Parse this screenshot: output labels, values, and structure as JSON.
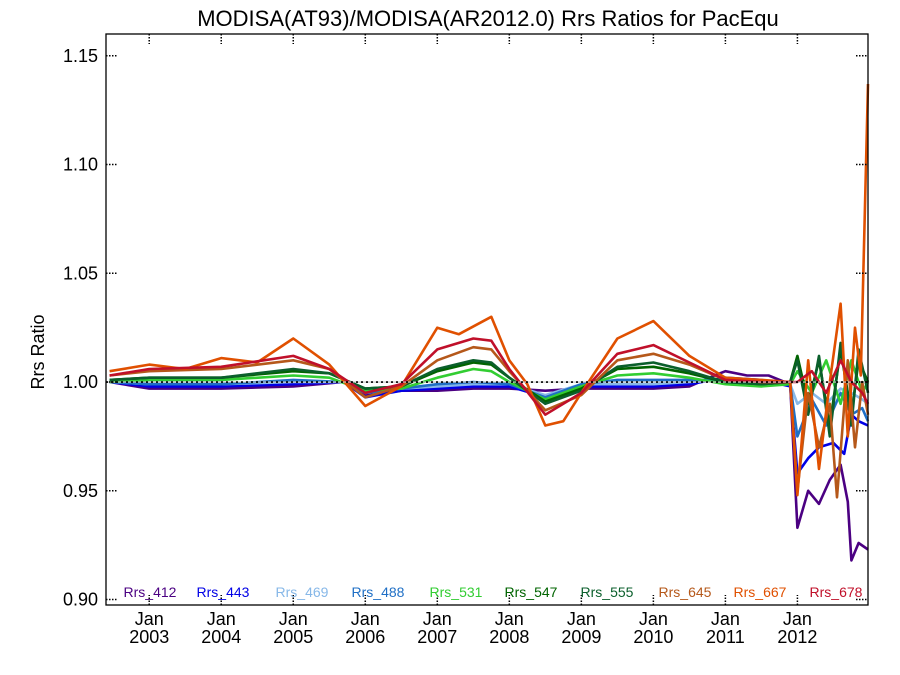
{
  "chart_data": {
    "type": "line",
    "title": "MODISA(AT93)/MODISA(AR2012.0)  Rrs Ratios for PacEqu",
    "xlabel": "",
    "ylabel": "Rrs Ratio",
    "ylim": [
      0.8975,
      1.16
    ],
    "xlim": [
      2002.4,
      2012.98
    ],
    "y_ticks": [
      "0.90",
      "0.95",
      "1.00",
      "1.05",
      "1.10",
      "1.15"
    ],
    "x_ticks": [
      {
        "month": "Jan",
        "year": "2003"
      },
      {
        "month": "Jan",
        "year": "2004"
      },
      {
        "month": "Jan",
        "year": "2005"
      },
      {
        "month": "Jan",
        "year": "2006"
      },
      {
        "month": "Jan",
        "year": "2007"
      },
      {
        "month": "Jan",
        "year": "2008"
      },
      {
        "month": "Jan",
        "year": "2009"
      },
      {
        "month": "Jan",
        "year": "2010"
      },
      {
        "month": "Jan",
        "year": "2011"
      },
      {
        "month": "Jan",
        "year": "2012"
      }
    ],
    "reference_line": 1.0,
    "grid": false,
    "legend_position": "bottom",
    "series": [
      {
        "name": "Rrs_412",
        "color": "#4b0082",
        "points": [
          [
            2002.45,
            1.0
          ],
          [
            2003.0,
            0.997
          ],
          [
            2004.0,
            0.997
          ],
          [
            2005.0,
            0.998
          ],
          [
            2005.7,
            1.0
          ],
          [
            2006.0,
            0.994
          ],
          [
            2006.5,
            0.996
          ],
          [
            2007.0,
            0.996
          ],
          [
            2007.5,
            0.997
          ],
          [
            2008.0,
            0.997
          ],
          [
            2008.5,
            0.996
          ],
          [
            2009.0,
            0.997
          ],
          [
            2009.5,
            0.997
          ],
          [
            2010.0,
            0.997
          ],
          [
            2010.5,
            0.998
          ],
          [
            2010.85,
            1.003
          ],
          [
            2011.0,
            1.005
          ],
          [
            2011.3,
            1.003
          ],
          [
            2011.6,
            1.003
          ],
          [
            2011.9,
            0.999
          ],
          [
            2012.0,
            0.933
          ],
          [
            2012.15,
            0.95
          ],
          [
            2012.3,
            0.944
          ],
          [
            2012.45,
            0.955
          ],
          [
            2012.6,
            0.962
          ],
          [
            2012.7,
            0.945
          ],
          [
            2012.75,
            0.918
          ],
          [
            2012.85,
            0.926
          ],
          [
            2012.98,
            0.923
          ]
        ]
      },
      {
        "name": "Rrs_443",
        "color": "#0000e6",
        "points": [
          [
            2002.45,
            1.0
          ],
          [
            2003.0,
            0.998
          ],
          [
            2004.0,
            0.998
          ],
          [
            2005.0,
            0.999
          ],
          [
            2005.7,
            1.0
          ],
          [
            2006.0,
            0.993
          ],
          [
            2006.5,
            0.996
          ],
          [
            2007.0,
            0.997
          ],
          [
            2007.5,
            0.998
          ],
          [
            2008.0,
            0.998
          ],
          [
            2008.5,
            0.993
          ],
          [
            2009.0,
            0.998
          ],
          [
            2009.5,
            0.998
          ],
          [
            2010.0,
            0.998
          ],
          [
            2010.5,
            0.999
          ],
          [
            2011.0,
            1.002
          ],
          [
            2011.5,
            1.001
          ],
          [
            2011.9,
            0.998
          ],
          [
            2012.0,
            0.958
          ],
          [
            2012.15,
            0.965
          ],
          [
            2012.3,
            0.97
          ],
          [
            2012.5,
            0.972
          ],
          [
            2012.65,
            0.967
          ],
          [
            2012.75,
            0.985
          ],
          [
            2012.85,
            0.982
          ],
          [
            2012.98,
            0.98
          ]
        ]
      },
      {
        "name": "Rrs_469",
        "color": "#87b8e8",
        "points": [
          [
            2002.45,
            1.0
          ],
          [
            2003.0,
            0.999
          ],
          [
            2004.0,
            0.999
          ],
          [
            2005.0,
            1.0
          ],
          [
            2005.7,
            1.0
          ],
          [
            2006.0,
            0.995
          ],
          [
            2006.5,
            0.997
          ],
          [
            2007.0,
            0.998
          ],
          [
            2007.5,
            0.999
          ],
          [
            2008.0,
            0.999
          ],
          [
            2008.5,
            0.994
          ],
          [
            2009.0,
            0.999
          ],
          [
            2009.5,
            0.999
          ],
          [
            2010.0,
            0.999
          ],
          [
            2010.5,
            1.0
          ],
          [
            2011.0,
            1.001
          ],
          [
            2011.5,
            1.001
          ],
          [
            2011.9,
            0.999
          ],
          [
            2012.0,
            0.99
          ],
          [
            2012.2,
            0.995
          ],
          [
            2012.4,
            0.99
          ],
          [
            2012.6,
            0.997
          ],
          [
            2012.75,
            0.995
          ],
          [
            2012.9,
            0.992
          ],
          [
            2012.98,
            0.99
          ]
        ]
      },
      {
        "name": "Rrs_488",
        "color": "#1f6fc5",
        "points": [
          [
            2002.45,
            1.0
          ],
          [
            2003.0,
            0.999
          ],
          [
            2004.0,
            0.999
          ],
          [
            2005.0,
            1.001
          ],
          [
            2005.7,
            1.0
          ],
          [
            2006.0,
            0.995
          ],
          [
            2006.5,
            0.997
          ],
          [
            2007.0,
            0.999
          ],
          [
            2007.5,
            1.0
          ],
          [
            2008.0,
            0.999
          ],
          [
            2008.5,
            0.993
          ],
          [
            2009.0,
            0.999
          ],
          [
            2009.5,
            1.001
          ],
          [
            2010.0,
            1.001
          ],
          [
            2010.5,
            1.001
          ],
          [
            2011.0,
            1.001
          ],
          [
            2011.5,
            1.0
          ],
          [
            2011.9,
            0.999
          ],
          [
            2012.0,
            0.975
          ],
          [
            2012.2,
            0.992
          ],
          [
            2012.4,
            0.98
          ],
          [
            2012.6,
            0.995
          ],
          [
            2012.75,
            0.985
          ],
          [
            2012.9,
            0.988
          ],
          [
            2012.98,
            0.982
          ]
        ]
      },
      {
        "name": "Rrs_531",
        "color": "#32cd32",
        "points": [
          [
            2002.45,
            1.0
          ],
          [
            2003.0,
            1.001
          ],
          [
            2004.0,
            1.001
          ],
          [
            2005.0,
            1.003
          ],
          [
            2005.5,
            1.002
          ],
          [
            2006.0,
            0.996
          ],
          [
            2006.5,
            0.997
          ],
          [
            2007.0,
            1.002
          ],
          [
            2007.5,
            1.006
          ],
          [
            2007.75,
            1.005
          ],
          [
            2008.0,
            1.0
          ],
          [
            2008.5,
            0.992
          ],
          [
            2009.0,
            0.998
          ],
          [
            2009.5,
            1.003
          ],
          [
            2010.0,
            1.004
          ],
          [
            2010.5,
            1.002
          ],
          [
            2011.0,
            0.999
          ],
          [
            2011.5,
            0.998
          ],
          [
            2011.9,
            0.999
          ],
          [
            2012.0,
            1.005
          ],
          [
            2012.2,
            0.995
          ],
          [
            2012.4,
            1.01
          ],
          [
            2012.6,
            0.99
          ],
          [
            2012.75,
            1.01
          ],
          [
            2012.9,
            0.995
          ],
          [
            2012.98,
            1.0
          ]
        ]
      },
      {
        "name": "Rrs_547",
        "color": "#006400",
        "points": [
          [
            2002.45,
            1.001
          ],
          [
            2003.0,
            1.002
          ],
          [
            2004.0,
            1.002
          ],
          [
            2005.0,
            1.005
          ],
          [
            2005.5,
            1.004
          ],
          [
            2006.0,
            0.997
          ],
          [
            2006.5,
            0.998
          ],
          [
            2007.0,
            1.005
          ],
          [
            2007.5,
            1.009
          ],
          [
            2007.75,
            1.008
          ],
          [
            2008.0,
            1.002
          ],
          [
            2008.5,
            0.991
          ],
          [
            2009.0,
            0.997
          ],
          [
            2009.5,
            1.006
          ],
          [
            2010.0,
            1.007
          ],
          [
            2010.5,
            1.004
          ],
          [
            2011.0,
            1.0
          ],
          [
            2011.5,
            0.999
          ],
          [
            2011.9,
            1.0
          ],
          [
            2012.0,
            1.012
          ],
          [
            2012.15,
            0.99
          ],
          [
            2012.3,
            1.01
          ],
          [
            2012.45,
            0.98
          ],
          [
            2012.6,
            1.015
          ],
          [
            2012.75,
            0.985
          ],
          [
            2012.85,
            1.01
          ],
          [
            2012.98,
            1.0
          ]
        ]
      },
      {
        "name": "Rrs_555",
        "color": "#0b5f2c",
        "points": [
          [
            2002.45,
            1.001
          ],
          [
            2003.0,
            1.002
          ],
          [
            2004.0,
            1.002
          ],
          [
            2005.0,
            1.006
          ],
          [
            2005.5,
            1.004
          ],
          [
            2006.0,
            0.997
          ],
          [
            2006.5,
            0.998
          ],
          [
            2007.0,
            1.006
          ],
          [
            2007.5,
            1.01
          ],
          [
            2007.75,
            1.009
          ],
          [
            2008.0,
            1.002
          ],
          [
            2008.5,
            0.99
          ],
          [
            2009.0,
            0.996
          ],
          [
            2009.5,
            1.007
          ],
          [
            2010.0,
            1.009
          ],
          [
            2010.5,
            1.005
          ],
          [
            2011.0,
            1.0
          ],
          [
            2011.5,
            0.999
          ],
          [
            2011.9,
            1.0
          ],
          [
            2012.0,
            1.01
          ],
          [
            2012.15,
            0.985
          ],
          [
            2012.3,
            1.012
          ],
          [
            2012.45,
            0.975
          ],
          [
            2012.6,
            1.018
          ],
          [
            2012.75,
            0.98
          ],
          [
            2012.85,
            1.015
          ],
          [
            2012.98,
            0.995
          ]
        ]
      },
      {
        "name": "Rrs_645",
        "color": "#b5581a",
        "points": [
          [
            2002.45,
            1.003
          ],
          [
            2003.0,
            1.005
          ],
          [
            2004.0,
            1.006
          ],
          [
            2005.0,
            1.01
          ],
          [
            2005.5,
            1.006
          ],
          [
            2006.0,
            0.993
          ],
          [
            2006.5,
            0.998
          ],
          [
            2007.0,
            1.01
          ],
          [
            2007.5,
            1.016
          ],
          [
            2007.75,
            1.015
          ],
          [
            2008.0,
            1.005
          ],
          [
            2008.5,
            0.987
          ],
          [
            2009.0,
            0.994
          ],
          [
            2009.5,
            1.01
          ],
          [
            2010.0,
            1.013
          ],
          [
            2010.5,
            1.008
          ],
          [
            2011.0,
            1.001
          ],
          [
            2011.5,
            1.0
          ],
          [
            2011.9,
            1.0
          ],
          [
            2012.0,
            0.95
          ],
          [
            2012.15,
            0.995
          ],
          [
            2012.3,
            0.97
          ],
          [
            2012.45,
            0.99
          ],
          [
            2012.55,
            0.947
          ],
          [
            2012.7,
            1.01
          ],
          [
            2012.8,
            0.97
          ],
          [
            2012.9,
            1.0
          ],
          [
            2012.98,
            0.985
          ]
        ]
      },
      {
        "name": "Rrs_667",
        "color": "#e05000",
        "points": [
          [
            2002.45,
            1.005
          ],
          [
            2003.0,
            1.008
          ],
          [
            2003.5,
            1.006
          ],
          [
            2004.0,
            1.011
          ],
          [
            2004.5,
            1.009
          ],
          [
            2005.0,
            1.02
          ],
          [
            2005.5,
            1.008
          ],
          [
            2006.0,
            0.989
          ],
          [
            2006.5,
            0.998
          ],
          [
            2007.0,
            1.025
          ],
          [
            2007.3,
            1.022
          ],
          [
            2007.75,
            1.03
          ],
          [
            2008.0,
            1.01
          ],
          [
            2008.25,
            0.999
          ],
          [
            2008.5,
            0.98
          ],
          [
            2008.75,
            0.982
          ],
          [
            2009.0,
            0.995
          ],
          [
            2009.5,
            1.02
          ],
          [
            2010.0,
            1.028
          ],
          [
            2010.5,
            1.012
          ],
          [
            2011.0,
            1.002
          ],
          [
            2011.5,
            1.001
          ],
          [
            2011.9,
            1.0
          ],
          [
            2012.0,
            0.948
          ],
          [
            2012.15,
            1.01
          ],
          [
            2012.3,
            0.96
          ],
          [
            2012.45,
            1.0
          ],
          [
            2012.6,
            1.036
          ],
          [
            2012.7,
            0.975
          ],
          [
            2012.8,
            1.025
          ],
          [
            2012.88,
            1.003
          ],
          [
            2012.93,
            1.07
          ],
          [
            2012.98,
            1.137
          ]
        ]
      },
      {
        "name": "Rrs_678",
        "color": "#c0102a",
        "points": [
          [
            2002.45,
            1.003
          ],
          [
            2003.0,
            1.006
          ],
          [
            2004.0,
            1.007
          ],
          [
            2005.0,
            1.012
          ],
          [
            2005.5,
            1.006
          ],
          [
            2006.0,
            0.995
          ],
          [
            2006.5,
            0.999
          ],
          [
            2007.0,
            1.015
          ],
          [
            2007.5,
            1.02
          ],
          [
            2007.75,
            1.019
          ],
          [
            2008.0,
            1.006
          ],
          [
            2008.5,
            0.985
          ],
          [
            2009.0,
            0.995
          ],
          [
            2009.5,
            1.013
          ],
          [
            2010.0,
            1.017
          ],
          [
            2010.5,
            1.009
          ],
          [
            2011.0,
            1.001
          ],
          [
            2011.5,
            1.0
          ],
          [
            2011.9,
            1.0
          ],
          [
            2012.0,
            1.0
          ],
          [
            2012.2,
            1.005
          ],
          [
            2012.4,
            0.995
          ],
          [
            2012.6,
            1.01
          ],
          [
            2012.75,
            1.0
          ],
          [
            2012.9,
            0.995
          ],
          [
            2012.98,
            0.99
          ]
        ]
      }
    ]
  }
}
